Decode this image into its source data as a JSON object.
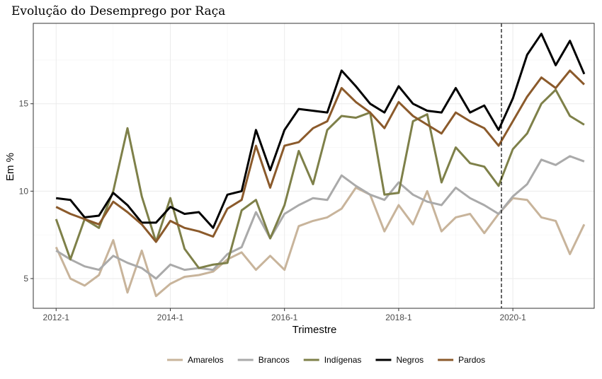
{
  "chart_data": {
    "type": "line",
    "title": "Evolução do Desemprego por Raça",
    "xlabel": "Trimestre",
    "ylabel": "Em %",
    "xlim": [
      -1.6,
      37.7
    ],
    "ylim": [
      3.3,
      19.6
    ],
    "x_ticks": [
      {
        "pos": 0,
        "label": "2012-1"
      },
      {
        "pos": 8,
        "label": "2014-1"
      },
      {
        "pos": 16,
        "label": "2016-1"
      },
      {
        "pos": 24,
        "label": "2018-1"
      },
      {
        "pos": 32,
        "label": "2020-1"
      }
    ],
    "y_ticks": [
      5,
      10,
      15
    ],
    "vline_x": 31.2,
    "grid": true,
    "legend_position": "bottom",
    "series": [
      {
        "name": "Amarelos",
        "color": "#c8b49b",
        "values": [
          6.8,
          5.0,
          4.6,
          5.2,
          7.2,
          4.2,
          6.6,
          4.0,
          4.7,
          5.1,
          5.2,
          5.4,
          6.1,
          6.5,
          5.5,
          6.3,
          5.5,
          8.0,
          8.3,
          8.5,
          9.0,
          10.2,
          9.8,
          7.7,
          9.2,
          8.1,
          10.0,
          7.7,
          8.5,
          8.7,
          7.6,
          8.7,
          9.6,
          9.5,
          8.5,
          8.3,
          6.4,
          8.1
        ]
      },
      {
        "name": "Brancos",
        "color": "#aaaaaa",
        "values": [
          6.6,
          6.1,
          5.7,
          5.5,
          6.3,
          5.9,
          5.6,
          5.0,
          5.8,
          5.5,
          5.6,
          5.5,
          6.4,
          6.8,
          8.8,
          7.3,
          8.7,
          9.2,
          9.6,
          9.5,
          10.9,
          10.3,
          9.8,
          9.5,
          10.5,
          9.8,
          9.4,
          9.2,
          10.2,
          9.6,
          9.2,
          8.7,
          9.7,
          10.4,
          11.8,
          11.5,
          12.0,
          11.7
        ]
      },
      {
        "name": "Indígenas",
        "color": "#7e8049",
        "values": [
          8.4,
          6.1,
          8.4,
          7.9,
          10.0,
          13.6,
          9.7,
          7.1,
          9.6,
          6.7,
          5.6,
          5.8,
          5.9,
          8.9,
          9.5,
          7.3,
          9.2,
          12.3,
          10.4,
          13.5,
          14.3,
          14.2,
          14.5,
          9.8,
          9.9,
          14.0,
          14.4,
          10.5,
          12.5,
          11.6,
          11.4,
          10.3,
          12.4,
          13.3,
          15.0,
          15.8,
          14.3,
          13.8
        ]
      },
      {
        "name": "Negros",
        "color": "#000000",
        "values": [
          9.6,
          9.5,
          8.5,
          8.6,
          9.9,
          9.2,
          8.2,
          8.2,
          9.1,
          8.7,
          8.8,
          7.9,
          9.8,
          10.0,
          13.5,
          11.2,
          13.5,
          14.7,
          14.6,
          14.5,
          16.9,
          16.0,
          15.0,
          14.5,
          16.0,
          15.0,
          14.6,
          14.5,
          15.9,
          14.5,
          14.9,
          13.5,
          15.3,
          17.8,
          19.0,
          17.2,
          18.6,
          16.7
        ]
      },
      {
        "name": "Pardos",
        "color": "#8b5a2b",
        "values": [
          9.1,
          8.7,
          8.4,
          8.1,
          9.4,
          8.8,
          8.1,
          7.1,
          8.3,
          7.9,
          7.7,
          7.4,
          9.0,
          9.5,
          12.6,
          10.2,
          12.6,
          12.8,
          13.6,
          14.0,
          15.9,
          15.1,
          14.5,
          13.6,
          15.1,
          14.3,
          13.8,
          13.3,
          14.5,
          14.0,
          13.6,
          12.6,
          14.0,
          15.4,
          16.5,
          15.9,
          16.9,
          16.1
        ]
      }
    ]
  }
}
